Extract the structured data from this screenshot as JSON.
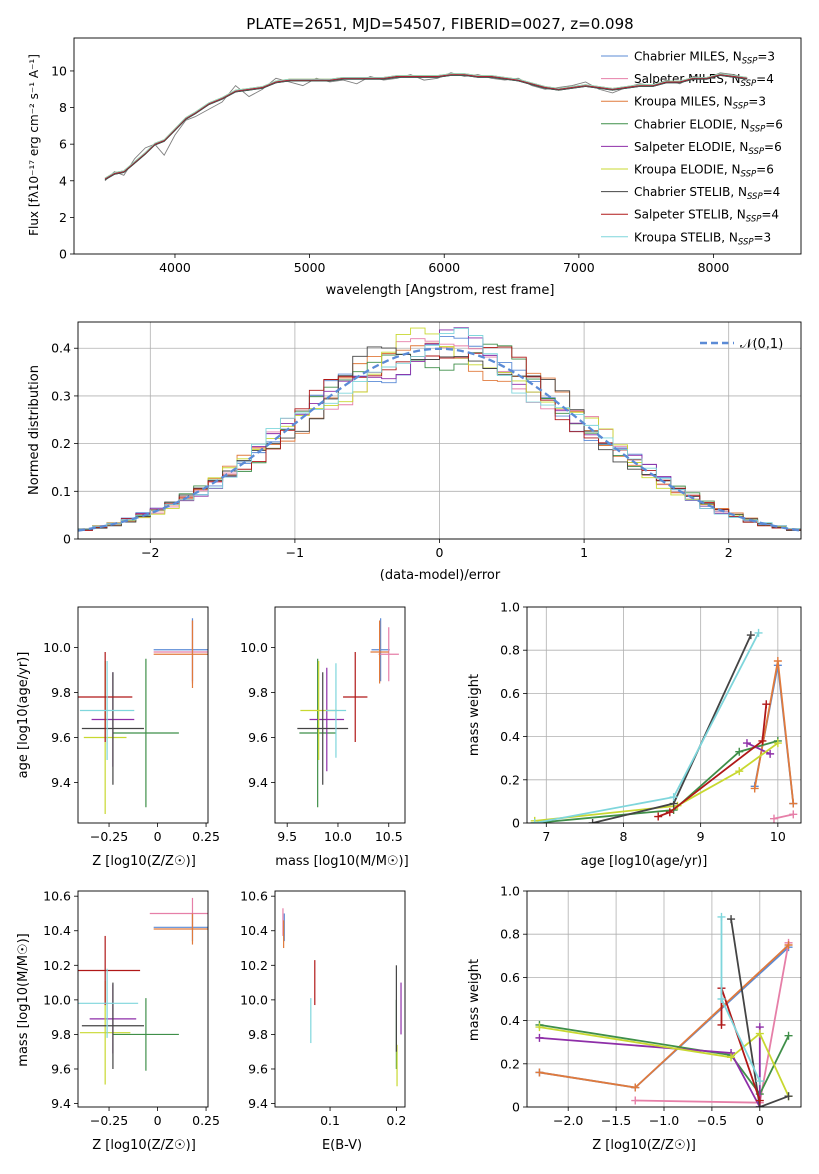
{
  "chart_data": [
    {
      "id": "spectrum",
      "type": "line",
      "title": "PLATE=2651, MJD=54507, FIBERID=0027, z=0.098",
      "xlabel": "wavelength [Angstrom, rest frame]",
      "ylabel": "Flux [fλ10⁻¹⁷ erg cm⁻² s⁻¹ A⁻¹]",
      "xlim": [
        3250,
        8650
      ],
      "ylim": [
        0,
        11.8
      ],
      "xticks": [
        4000,
        5000,
        6000,
        7000,
        8000
      ],
      "yticks": [
        0,
        2,
        4,
        6,
        8,
        10
      ],
      "grid": false,
      "legend": "upper right",
      "observed": {
        "color": "#808080",
        "x": [
          3480,
          3550,
          3620,
          3700,
          3780,
          3850,
          3920,
          4000,
          4080,
          4150,
          4250,
          4350,
          4450,
          4550,
          4650,
          4750,
          4850,
          4950,
          5050,
          5150,
          5250,
          5350,
          5450,
          5550,
          5650,
          5750,
          5850,
          5950,
          6050,
          6150,
          6250,
          6350,
          6450,
          6550,
          6650,
          6750,
          6850,
          6950,
          7050,
          7150,
          7250,
          7350,
          7450,
          7550,
          7650,
          7750,
          7850,
          7950,
          8050,
          8150,
          8250
        ],
        "y": [
          4.0,
          4.5,
          4.3,
          5.2,
          5.8,
          6.0,
          5.4,
          6.5,
          7.3,
          7.5,
          7.9,
          8.3,
          9.2,
          8.6,
          9.0,
          9.6,
          9.4,
          9.2,
          9.6,
          9.4,
          9.5,
          9.3,
          9.7,
          9.5,
          9.6,
          9.8,
          9.5,
          9.6,
          9.9,
          9.7,
          9.8,
          9.6,
          9.5,
          9.6,
          9.2,
          9.0,
          9.1,
          9.2,
          9.4,
          9.0,
          8.8,
          9.1,
          9.3,
          9.2,
          9.5,
          9.3,
          9.7,
          9.6,
          9.9,
          9.8,
          9.6
        ]
      },
      "series": [
        {
          "name": "Chabrier MILES, N_SSP=3",
          "color": "#5b8bd6"
        },
        {
          "name": "Salpeter MILES, N_SSP=4",
          "color": "#e67fa8"
        },
        {
          "name": "Kroupa MILES, N_SSP=3",
          "color": "#e07a3c"
        },
        {
          "name": "Chabrier ELODIE, N_SSP=6",
          "color": "#3f8f49"
        },
        {
          "name": "Salpeter ELODIE, N_SSP=6",
          "color": "#8e2ea8"
        },
        {
          "name": "Kroupa ELODIE, N_SSP=6",
          "color": "#c8d830"
        },
        {
          "name": "Chabrier STELIB, N_SSP=4",
          "color": "#444444"
        },
        {
          "name": "Salpeter STELIB, N_SSP=4",
          "color": "#b01818"
        },
        {
          "name": "Kroupa STELIB, N_SSP=3",
          "color": "#7fd6dc"
        }
      ],
      "model": {
        "x": [
          3480,
          3550,
          3620,
          3700,
          3780,
          3850,
          3920,
          4000,
          4080,
          4150,
          4250,
          4350,
          4450,
          4550,
          4650,
          4750,
          4850,
          4950,
          5050,
          5150,
          5250,
          5350,
          5450,
          5550,
          5650,
          5750,
          5850,
          5950,
          6050,
          6150,
          6250,
          6350,
          6450,
          6550,
          6650,
          6750,
          6850,
          6950,
          7050,
          7150,
          7250,
          7350,
          7450,
          7550,
          7650,
          7750,
          7850,
          7950,
          8050,
          8150,
          8250
        ],
        "y": [
          4.1,
          4.4,
          4.5,
          5.0,
          5.5,
          6.0,
          6.2,
          6.8,
          7.4,
          7.7,
          8.2,
          8.5,
          8.9,
          9.0,
          9.1,
          9.4,
          9.5,
          9.5,
          9.5,
          9.5,
          9.6,
          9.6,
          9.6,
          9.6,
          9.7,
          9.7,
          9.7,
          9.7,
          9.8,
          9.8,
          9.7,
          9.7,
          9.6,
          9.5,
          9.3,
          9.1,
          9.0,
          9.1,
          9.2,
          9.1,
          9.0,
          9.1,
          9.2,
          9.2,
          9.4,
          9.4,
          9.6,
          9.6,
          9.8,
          9.7,
          9.6
        ]
      }
    },
    {
      "id": "residuals",
      "type": "line",
      "xlabel": "(data-model)/error",
      "ylabel": "Normed distribution",
      "xlim": [
        -2.5,
        2.5
      ],
      "ylim": [
        0,
        0.455
      ],
      "xticks": [
        -2,
        -1,
        0,
        1,
        2
      ],
      "yticks": [
        0.0,
        0.1,
        0.2,
        0.3,
        0.4
      ],
      "grid": true,
      "legend": "upper right",
      "reference": {
        "name": "𝒩(0,1)",
        "color": "#5b8bd6"
      },
      "bin_width": 0.1
    },
    {
      "id": "age-vs-Z",
      "type": "scatter",
      "xlabel": "Z [log10(Z/Z☉)]",
      "ylabel": "age  [log10(age/yr)]",
      "xlim": [
        -0.41,
        0.26
      ],
      "ylim": [
        9.22,
        10.18
      ],
      "xticks": [
        -0.25,
        0.0,
        0.25
      ],
      "yticks": [
        9.4,
        9.6,
        9.8,
        10.0
      ],
      "points": [
        {
          "c": "#5b8bd6",
          "x": 0.18,
          "y": 9.99,
          "xe": 0.2,
          "ye": 0.14
        },
        {
          "c": "#e67fa8",
          "x": 0.18,
          "y": 9.98,
          "xe": 0.2,
          "ye": 0.14
        },
        {
          "c": "#e07a3c",
          "x": 0.18,
          "y": 9.97,
          "xe": 0.2,
          "ye": 0.15
        },
        {
          "c": "#3f8f49",
          "x": -0.06,
          "y": 9.62,
          "xe": 0.17,
          "ye": 0.33
        },
        {
          "c": "#8e2ea8",
          "x": -0.23,
          "y": 9.68,
          "xe": 0.11,
          "ye": 0.21
        },
        {
          "c": "#c8d830",
          "x": -0.27,
          "y": 9.6,
          "xe": 0.11,
          "ye": 0.34
        },
        {
          "c": "#444444",
          "x": -0.23,
          "y": 9.64,
          "xe": 0.16,
          "ye": 0.25
        },
        {
          "c": "#b01818",
          "x": -0.27,
          "y": 9.78,
          "xe": 0.14,
          "ye": 0.2
        },
        {
          "c": "#7fd6dc",
          "x": -0.26,
          "y": 9.72,
          "xe": 0.14,
          "ye": 0.22
        }
      ]
    },
    {
      "id": "age-vs-mass",
      "type": "scatter",
      "xlabel": "mass [log10(M/M☉)]",
      "ylabel": "",
      "xlim": [
        9.38,
        10.66
      ],
      "ylim": [
        9.22,
        10.18
      ],
      "xticks": [
        9.5,
        10.0,
        10.5
      ],
      "yticks": [
        9.4,
        9.6,
        9.8,
        10.0
      ],
      "points": [
        {
          "c": "#5b8bd6",
          "x": 10.42,
          "y": 9.99,
          "xe": 0.09,
          "ye": 0.14
        },
        {
          "c": "#e67fa8",
          "x": 10.5,
          "y": 9.97,
          "xe": 0.1,
          "ye": 0.12
        },
        {
          "c": "#e07a3c",
          "x": 10.41,
          "y": 9.98,
          "xe": 0.09,
          "ye": 0.14
        },
        {
          "c": "#3f8f49",
          "x": 9.8,
          "y": 9.62,
          "xe": 0.18,
          "ye": 0.33
        },
        {
          "c": "#8e2ea8",
          "x": 9.89,
          "y": 9.68,
          "xe": 0.17,
          "ye": 0.23
        },
        {
          "c": "#c8d830",
          "x": 9.81,
          "y": 9.72,
          "xe": 0.18,
          "ye": 0.22
        },
        {
          "c": "#444444",
          "x": 9.85,
          "y": 9.64,
          "xe": 0.25,
          "ye": 0.25
        },
        {
          "c": "#b01818",
          "x": 10.17,
          "y": 9.78,
          "xe": 0.12,
          "ye": 0.2
        },
        {
          "c": "#7fd6dc",
          "x": 9.98,
          "y": 9.72,
          "xe": 0.1,
          "ye": 0.21
        }
      ]
    },
    {
      "id": "weight-vs-age",
      "type": "line",
      "xlabel": "age  [log10(age/yr)]",
      "ylabel": "mass weight",
      "xlim": [
        6.75,
        10.3
      ],
      "ylim": [
        0,
        1
      ],
      "xticks": [
        7,
        8,
        9,
        10
      ],
      "yticks": [
        0.0,
        0.2,
        0.4,
        0.6,
        0.8,
        1.0
      ],
      "grid": true,
      "series": [
        {
          "c": "#5b8bd6",
          "x": [
            9.7,
            10.0,
            10.2
          ],
          "y": [
            0.17,
            0.73,
            0.09
          ]
        },
        {
          "c": "#e67fa8",
          "x": [
            9.95,
            10.2
          ],
          "y": [
            0.02,
            0.04
          ]
        },
        {
          "c": "#e07a3c",
          "x": [
            9.7,
            10.0,
            10.2
          ],
          "y": [
            0.16,
            0.75,
            0.09
          ]
        },
        {
          "c": "#3f8f49",
          "x": [
            6.85,
            8.65,
            9.5,
            10.0
          ],
          "y": [
            0.0,
            0.06,
            0.33,
            0.38
          ]
        },
        {
          "c": "#8e2ea8",
          "x": [
            9.6,
            9.9
          ],
          "y": [
            0.37,
            0.32
          ]
        },
        {
          "c": "#c8d830",
          "x": [
            6.85,
            8.7,
            9.5,
            10.0
          ],
          "y": [
            0.01,
            0.08,
            0.24,
            0.37
          ]
        },
        {
          "c": "#444444",
          "x": [
            7.6,
            8.65,
            9.65
          ],
          "y": [
            0.0,
            0.09,
            0.87
          ]
        },
        {
          "c": "#b01818",
          "x": [
            8.45,
            8.6,
            9.8,
            9.85
          ],
          "y": [
            0.03,
            0.05,
            0.38,
            0.55
          ]
        },
        {
          "c": "#7fd6dc",
          "x": [
            6.85,
            8.65,
            9.75
          ],
          "y": [
            0.0,
            0.12,
            0.88
          ]
        }
      ]
    },
    {
      "id": "mass-vs-Z",
      "type": "scatter",
      "xlabel": "Z [log10(Z/Z☉)]",
      "ylabel": "mass [log10(M/M☉)]",
      "xlim": [
        -0.41,
        0.26
      ],
      "ylim": [
        9.38,
        10.63
      ],
      "xticks": [
        -0.25,
        0.0,
        0.25
      ],
      "yticks": [
        9.4,
        9.6,
        9.8,
        10.0,
        10.2,
        10.4,
        10.6
      ],
      "points": [
        {
          "c": "#5b8bd6",
          "x": 0.18,
          "y": 10.42,
          "xe": 0.2,
          "ye": 0.08
        },
        {
          "c": "#e67fa8",
          "x": 0.18,
          "y": 10.5,
          "xe": 0.22,
          "ye": 0.09
        },
        {
          "c": "#e07a3c",
          "x": 0.18,
          "y": 10.41,
          "xe": 0.2,
          "ye": 0.09
        },
        {
          "c": "#3f8f49",
          "x": -0.06,
          "y": 9.8,
          "xe": 0.17,
          "ye": 0.21
        },
        {
          "c": "#8e2ea8",
          "x": -0.23,
          "y": 9.89,
          "xe": 0.12,
          "ye": 0.2
        },
        {
          "c": "#c8d830",
          "x": -0.27,
          "y": 9.81,
          "xe": 0.13,
          "ye": 0.3
        },
        {
          "c": "#444444",
          "x": -0.23,
          "y": 9.85,
          "xe": 0.16,
          "ye": 0.25
        },
        {
          "c": "#b01818",
          "x": -0.27,
          "y": 10.17,
          "xe": 0.18,
          "ye": 0.2
        },
        {
          "c": "#7fd6dc",
          "x": -0.26,
          "y": 9.98,
          "xe": 0.16,
          "ye": 0.2
        }
      ]
    },
    {
      "id": "mass-vs-ebv",
      "type": "scatter",
      "xlabel": "E(B-V)",
      "ylabel": "",
      "xlim": [
        0.017,
        0.213
      ],
      "ylim": [
        9.38,
        10.63
      ],
      "xticks": [
        0.1,
        0.2
      ],
      "yticks": [
        9.4,
        9.6,
        9.8,
        10.0,
        10.2,
        10.4,
        10.6
      ],
      "points": [
        {
          "c": "#5b8bd6",
          "x": 0.031,
          "y": 10.42,
          "xe": 0,
          "ye": 0.08
        },
        {
          "c": "#e67fa8",
          "x": 0.029,
          "y": 10.45,
          "xe": 0,
          "ye": 0.08
        },
        {
          "c": "#e07a3c",
          "x": 0.03,
          "y": 10.38,
          "xe": 0,
          "ye": 0.08
        },
        {
          "c": "#3f8f49",
          "x": 0.2,
          "y": 9.8,
          "xe": 0,
          "ye": 0.2
        },
        {
          "c": "#8e2ea8",
          "x": 0.207,
          "y": 9.95,
          "xe": 0,
          "ye": 0.15
        },
        {
          "c": "#c8d830",
          "x": 0.201,
          "y": 9.62,
          "xe": 0,
          "ye": 0.12
        },
        {
          "c": "#444444",
          "x": 0.2,
          "y": 9.95,
          "xe": 0,
          "ye": 0.25
        },
        {
          "c": "#b01818",
          "x": 0.077,
          "y": 10.1,
          "xe": 0,
          "ye": 0.13
        },
        {
          "c": "#7fd6dc",
          "x": 0.071,
          "y": 9.88,
          "xe": 0,
          "ye": 0.13
        }
      ]
    },
    {
      "id": "weight-vs-Z",
      "type": "line",
      "xlabel": "Z [log10(Z/Z☉)]",
      "ylabel": "mass weight",
      "xlim": [
        -2.43,
        0.43
      ],
      "ylim": [
        0,
        1
      ],
      "xticks": [
        -2.0,
        -1.5,
        -1.0,
        -0.5,
        0.0
      ],
      "yticks": [
        0.0,
        0.2,
        0.4,
        0.6,
        0.8,
        1.0
      ],
      "grid": true,
      "series": [
        {
          "c": "#5b8bd6",
          "x": [
            -2.3,
            -1.3,
            0.3
          ],
          "y": [
            0.16,
            0.09,
            0.74
          ]
        },
        {
          "c": "#e67fa8",
          "x": [
            -1.3,
            0.0,
            0.3
          ],
          "y": [
            0.03,
            0.02,
            0.76
          ]
        },
        {
          "c": "#e07a3c",
          "x": [
            -2.3,
            -1.3,
            0.3
          ],
          "y": [
            0.16,
            0.09,
            0.75
          ]
        },
        {
          "c": "#3f8f49",
          "x": [
            -2.3,
            -0.3,
            0.0,
            0.3
          ],
          "y": [
            0.38,
            0.24,
            0.06,
            0.33
          ]
        },
        {
          "c": "#8e2ea8",
          "x": [
            -2.3,
            -0.3,
            0.0,
            0.0
          ],
          "y": [
            0.32,
            0.25,
            0.0,
            0.37
          ]
        },
        {
          "c": "#c8d830",
          "x": [
            -2.3,
            -0.3,
            0.0,
            0.3
          ],
          "y": [
            0.37,
            0.23,
            0.34,
            0.05
          ]
        },
        {
          "c": "#444444",
          "x": [
            -0.3,
            0.0,
            0.3
          ],
          "y": [
            0.87,
            0.0,
            0.05
          ]
        },
        {
          "c": "#b01818",
          "x": [
            -0.4,
            -0.4,
            0.0
          ],
          "y": [
            0.38,
            0.55,
            0.03
          ]
        },
        {
          "c": "#7fd6dc",
          "x": [
            -0.4,
            -0.4,
            0.0
          ],
          "y": [
            0.88,
            0.5,
            0.12
          ]
        }
      ]
    }
  ]
}
